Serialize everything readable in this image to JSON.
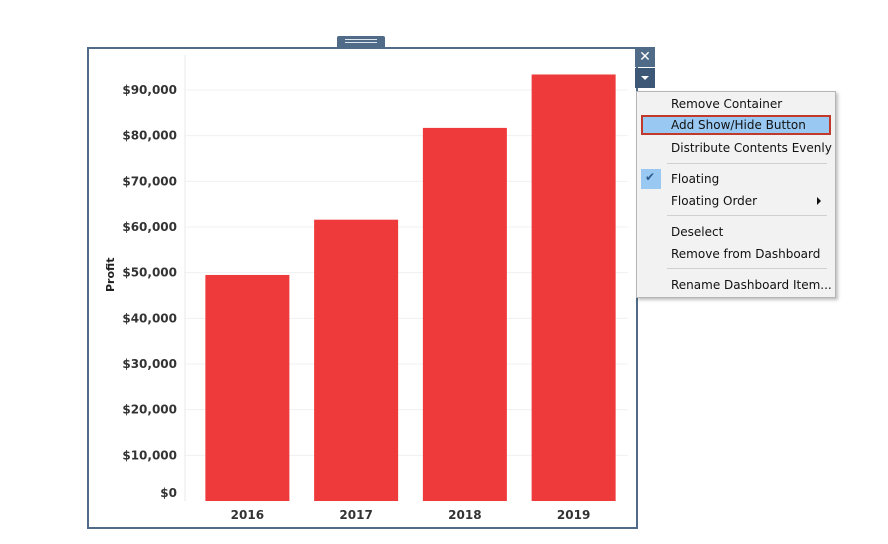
{
  "window": {
    "close_glyph": "✕"
  },
  "context_menu": {
    "items": [
      {
        "label": "Remove Container"
      },
      {
        "label": "Add Show/Hide Button"
      },
      {
        "label": "Distribute Contents Evenly"
      },
      {
        "label": "Floating",
        "checked": true
      },
      {
        "label": "Floating Order",
        "submenu": true
      },
      {
        "label": "Deselect"
      },
      {
        "label": "Remove from Dashboard"
      },
      {
        "label": "Rename Dashboard Item..."
      }
    ],
    "highlighted": "Add Show/Hide Button"
  },
  "chart_data": {
    "type": "bar",
    "categories": [
      "2016",
      "2017",
      "2018",
      "2019"
    ],
    "values": [
      49500,
      61600,
      81700,
      93400
    ],
    "ylabel": "Profit",
    "xlabel": "",
    "ylim": [
      0,
      95000
    ],
    "yticks": [
      0,
      10000,
      20000,
      30000,
      40000,
      50000,
      60000,
      70000,
      80000,
      90000
    ],
    "ytick_labels": [
      "$0",
      "$10,000",
      "$20,000",
      "$30,000",
      "$40,000",
      "$50,000",
      "$60,000",
      "$70,000",
      "$80,000",
      "$90,000"
    ],
    "bar_color": "#ee3a3b",
    "grid": true
  },
  "colors": {
    "container_border": "#4f6b87",
    "menu_highlight": "#99c9f2",
    "highlight_border": "#c0392b"
  }
}
